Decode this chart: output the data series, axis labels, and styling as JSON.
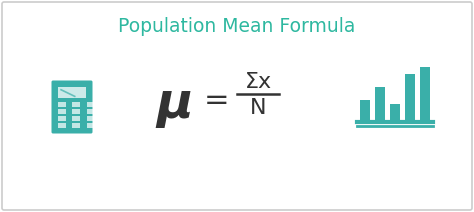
{
  "title": "Population Mean Formula",
  "title_color": "#2eb8a0",
  "title_fontsize": 13.5,
  "formula_mu": "μ",
  "formula_equals": "=",
  "formula_numerator": "Σx",
  "formula_denominator": "N",
  "formula_color": "#333333",
  "teal_color": "#3aafa9",
  "bg_color": "#ffffff",
  "border_color": "#cccccc",
  "fig_width": 4.74,
  "fig_height": 2.12,
  "dpi": 100
}
